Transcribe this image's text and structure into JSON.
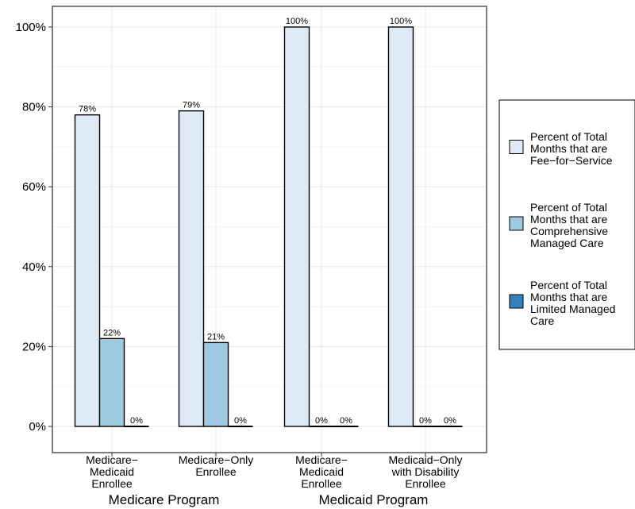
{
  "chart_data": {
    "type": "bar",
    "ylim": [
      0,
      100
    ],
    "yticks": [
      0,
      20,
      40,
      60,
      80,
      100
    ],
    "ytick_labels": [
      "0%",
      "20%",
      "40%",
      "60%",
      "80%",
      "100%"
    ],
    "grid": true,
    "legend_placement": "right",
    "categories": [
      {
        "lines": [
          "Medicare−",
          "Medicaid",
          "Enrollee"
        ],
        "group": "Medicare Program"
      },
      {
        "lines": [
          "Medicare−Only",
          "Enrollee"
        ],
        "group": "Medicare Program"
      },
      {
        "lines": [
          "Medicare−",
          "Medicaid",
          "Enrollee"
        ],
        "group": "Medicaid Program"
      },
      {
        "lines": [
          "Medicaid−Only",
          "with Disability",
          "Enrollee"
        ],
        "group": "Medicaid Program"
      }
    ],
    "groups": [
      "Medicare Program",
      "Medicaid Program"
    ],
    "series": [
      {
        "name": [
          "Percent of Total",
          "Months that are",
          "Fee−for−Service"
        ],
        "color": "#deebf7",
        "values": [
          78,
          79,
          100,
          100
        ],
        "labels": [
          "78%",
          "79%",
          "100%",
          "100%"
        ]
      },
      {
        "name": [
          "Percent of Total",
          "Months that are",
          "Comprehensive",
          "Managed Care"
        ],
        "color": "#9ecae1",
        "values": [
          22,
          21,
          0,
          0
        ],
        "labels": [
          "22%",
          "21%",
          "0%",
          "0%"
        ]
      },
      {
        "name": [
          "Percent of Total",
          "Months that are",
          "Limited Managed",
          "Care"
        ],
        "color": "#3182bd",
        "values": [
          0,
          0,
          0,
          0
        ],
        "labels": [
          "0%",
          "0%",
          "0%",
          "0%"
        ]
      }
    ]
  }
}
